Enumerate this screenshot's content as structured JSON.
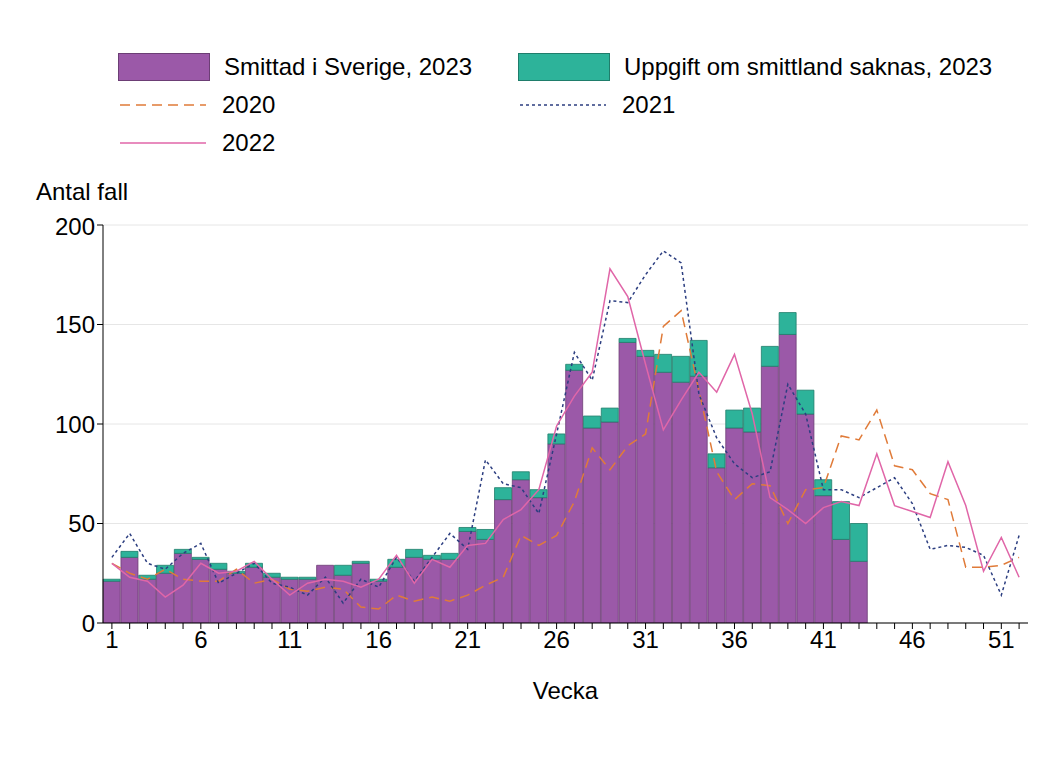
{
  "chart_data": {
    "type": "bar",
    "stacked": true,
    "grid": true,
    "x_label": "Vecka",
    "y_label": "Antal fall",
    "ylim": [
      0,
      200
    ],
    "yticks": [
      0,
      50,
      100,
      150,
      200
    ],
    "legend": "top",
    "categories": [
      1,
      null,
      null,
      null,
      null,
      6,
      null,
      null,
      null,
      null,
      11,
      null,
      null,
      null,
      null,
      16,
      null,
      null,
      null,
      null,
      21,
      null,
      null,
      null,
      null,
      26,
      null,
      null,
      null,
      null,
      31,
      null,
      null,
      null,
      null,
      36,
      null,
      null,
      null,
      null,
      41,
      null,
      null,
      null,
      null,
      46,
      null,
      null,
      null,
      null,
      51,
      null
    ],
    "series": [
      {
        "name": "Smittad i Sverige, 2023",
        "type": "bar",
        "color": "#9b59a8",
        "values": [
          21,
          33,
          22,
          25,
          35,
          32,
          27,
          25,
          28,
          23,
          22,
          22,
          29,
          24,
          30,
          21,
          28,
          33,
          32,
          32,
          46,
          42,
          62,
          72,
          63,
          90,
          127,
          98,
          101,
          141,
          134,
          126,
          121,
          124,
          78,
          98,
          96,
          129,
          145,
          105,
          64,
          42,
          31,
          null,
          null,
          null,
          null,
          null,
          null,
          null,
          null,
          null
        ]
      },
      {
        "name": "Uppgift om smittland saknas, 2023",
        "type": "bar",
        "color": "#2db39a",
        "values": [
          1,
          3,
          2,
          4,
          2,
          1,
          3,
          1,
          2,
          2,
          1,
          1,
          0,
          5,
          1,
          1,
          4,
          4,
          2,
          3,
          2,
          5,
          6,
          4,
          4,
          5,
          3,
          6,
          7,
          2,
          3,
          9,
          13,
          18,
          7,
          9,
          12,
          10,
          11,
          12,
          8,
          19,
          19,
          null,
          null,
          null,
          null,
          null,
          null,
          null,
          null,
          null
        ]
      },
      {
        "name": "2020",
        "type": "line",
        "line_style": "dashed",
        "color": "#e07b39",
        "values": [
          30,
          25,
          22,
          27,
          22,
          21,
          21,
          27,
          20,
          22,
          17,
          16,
          18,
          17,
          8,
          7,
          14,
          11,
          13,
          11,
          14,
          19,
          23,
          44,
          39,
          44,
          61,
          88,
          77,
          89,
          95,
          149,
          157,
          117,
          76,
          62,
          70,
          69,
          50,
          67,
          68,
          94,
          92,
          107,
          79,
          77,
          65,
          62,
          28,
          28,
          29,
          33
        ]
      },
      {
        "name": "2021",
        "type": "line",
        "line_style": "dotted",
        "color": "#2c3e80",
        "values": [
          33,
          45,
          30,
          27,
          35,
          40,
          20,
          25,
          30,
          20,
          18,
          14,
          23,
          10,
          22,
          18,
          33,
          21,
          33,
          45,
          37,
          82,
          70,
          68,
          55,
          95,
          136,
          122,
          162,
          161,
          175,
          187,
          181,
          115,
          93,
          80,
          73,
          76,
          120,
          105,
          67,
          67,
          63,
          68,
          73,
          60,
          37,
          39,
          38,
          34,
          14,
          44
        ]
      },
      {
        "name": "2022",
        "type": "line",
        "line_style": "solid",
        "color": "#e066a8",
        "values": [
          30,
          23,
          21,
          13,
          19,
          30,
          25,
          26,
          31,
          22,
          14,
          20,
          22,
          21,
          18,
          22,
          34,
          20,
          32,
          28,
          39,
          40,
          52,
          57,
          67,
          99,
          114,
          126,
          178,
          164,
          130,
          97,
          112,
          126,
          116,
          135,
          105,
          63,
          57,
          50,
          58,
          61,
          59,
          85,
          59,
          56,
          53,
          81,
          59,
          26,
          43,
          23
        ]
      }
    ]
  }
}
